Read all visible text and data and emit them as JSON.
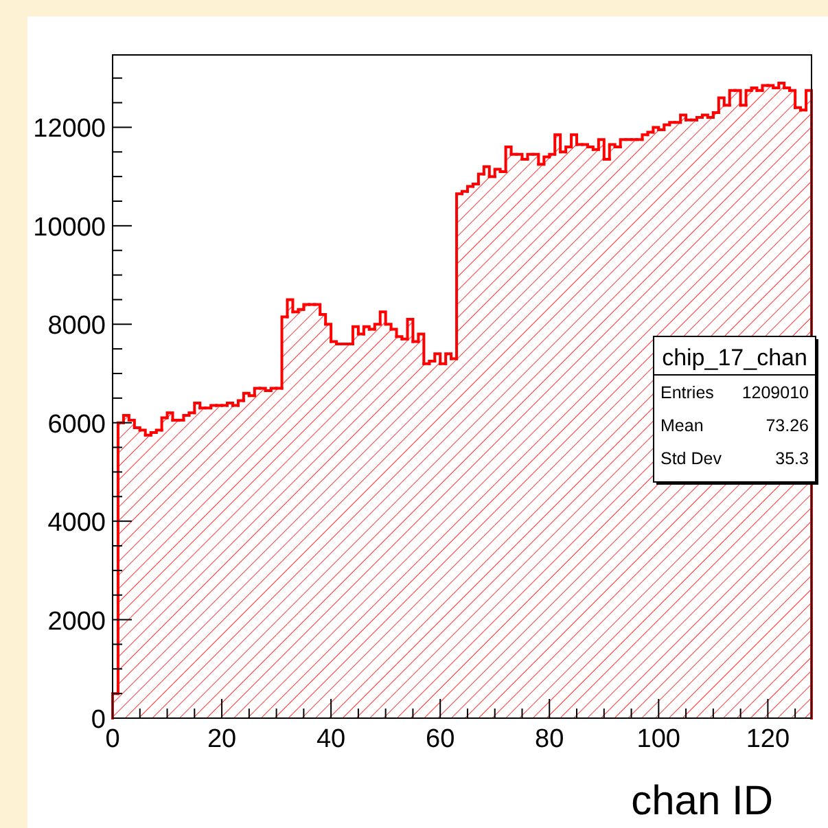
{
  "chart_data": {
    "type": "histogram",
    "xlabel": "chan ID",
    "color": "#ff0000",
    "bins": [
      0,
      1,
      2,
      3,
      4,
      5,
      6,
      7,
      8,
      9,
      10,
      11,
      12,
      13,
      14,
      15,
      16,
      17,
      18,
      19,
      20,
      21,
      22,
      23,
      24,
      25,
      26,
      27,
      28,
      29,
      30,
      31,
      32,
      33,
      34,
      35,
      36,
      37,
      38,
      39,
      40,
      41,
      42,
      43,
      44,
      45,
      46,
      47,
      48,
      49,
      50,
      51,
      52,
      53,
      54,
      55,
      56,
      57,
      58,
      59,
      60,
      61,
      62,
      63,
      64,
      65,
      66,
      67,
      68,
      69,
      70,
      71,
      72,
      73,
      74,
      75,
      76,
      77,
      78,
      79,
      80,
      81,
      82,
      83,
      84,
      85,
      86,
      87,
      88,
      89,
      90,
      91,
      92,
      93,
      94,
      95,
      96,
      97,
      98,
      99,
      100,
      101,
      102,
      103,
      104,
      105,
      106,
      107,
      108,
      109,
      110,
      111,
      112,
      113,
      114,
      115,
      116,
      117,
      118,
      119,
      120,
      121,
      122,
      123,
      124,
      125,
      126,
      127,
      128
    ],
    "values": [
      500,
      6000,
      6150,
      6050,
      5900,
      5850,
      5750,
      5800,
      5850,
      6100,
      6200,
      6050,
      6050,
      6150,
      6200,
      6400,
      6300,
      6300,
      6350,
      6350,
      6350,
      6400,
      6350,
      6450,
      6600,
      6550,
      6700,
      6700,
      6650,
      6700,
      6700,
      8150,
      8500,
      8250,
      8300,
      8400,
      8400,
      8400,
      8200,
      8000,
      7650,
      7600,
      7600,
      7600,
      7950,
      7800,
      7950,
      7900,
      8000,
      8250,
      8000,
      7900,
      7750,
      7700,
      8100,
      7650,
      7800,
      7200,
      7250,
      7400,
      7200,
      7400,
      7300,
      10650,
      10700,
      10800,
      10850,
      11050,
      11200,
      11000,
      11150,
      11100,
      11600,
      11450,
      11450,
      11350,
      11450,
      11450,
      11250,
      11400,
      11450,
      11850,
      11500,
      11600,
      11850,
      11650,
      11650,
      11600,
      11550,
      11750,
      11350,
      11650,
      11600,
      11750,
      11750,
      11750,
      11750,
      11850,
      11900,
      12000,
      11950,
      12050,
      12100,
      12100,
      12250,
      12150,
      12150,
      12200,
      12250,
      12200,
      12300,
      12600,
      12450,
      12750,
      12750,
      12450,
      12750,
      12800,
      12750,
      12850,
      12850,
      12800,
      12900,
      12800,
      12750,
      12400,
      12350,
      12750
    ],
    "xlim": [
      0,
      128
    ],
    "xticks": [
      0,
      {
        "value": 5,
        "label": null
      },
      {
        "value": 10,
        "label": null
      },
      {
        "value": 15,
        "label": null
      },
      20,
      {
        "value": 25,
        "label": null
      },
      {
        "value": 30,
        "label": null
      },
      {
        "value": 35,
        "label": null
      },
      40,
      {
        "value": 45,
        "label": null
      },
      {
        "value": 50,
        "label": null
      },
      {
        "value": 55,
        "label": null
      },
      60,
      {
        "value": 65,
        "label": null
      },
      {
        "value": 70,
        "label": null
      },
      {
        "value": 75,
        "label": null
      },
      80,
      {
        "value": 85,
        "label": null
      },
      {
        "value": 90,
        "label": null
      },
      {
        "value": 95,
        "label": null
      },
      100,
      {
        "value": 105,
        "label": null
      },
      {
        "value": 110,
        "label": null
      },
      {
        "value": 115,
        "label": null
      },
      120,
      {
        "value": 125,
        "label": null
      }
    ],
    "ylim": [
      0,
      13470
    ],
    "yticks": [
      0,
      {
        "value": 500,
        "label": null
      },
      {
        "value": 1000,
        "label": null
      },
      {
        "value": 1500,
        "label": null
      },
      2000,
      {
        "value": 2500,
        "label": null
      },
      {
        "value": 3000,
        "label": null
      },
      {
        "value": 3500,
        "label": null
      },
      4000,
      {
        "value": 4500,
        "label": null
      },
      {
        "value": 5000,
        "label": null
      },
      {
        "value": 5500,
        "label": null
      },
      6000,
      {
        "value": 6500,
        "label": null
      },
      {
        "value": 7000,
        "label": null
      },
      {
        "value": 7500,
        "label": null
      },
      8000,
      {
        "value": 8500,
        "label": null
      },
      {
        "value": 9000,
        "label": null
      },
      {
        "value": 9500,
        "label": null
      },
      10000,
      {
        "value": 10500,
        "label": null
      },
      {
        "value": 11000,
        "label": null
      },
      {
        "value": 11500,
        "label": null
      },
      12000,
      {
        "value": 12500,
        "label": null
      },
      {
        "value": 13000,
        "label": null
      }
    ],
    "grid": false,
    "annotations": [
      "chip_17_chan",
      "Entries",
      "1209010",
      "Mean",
      "73.26",
      "Std Dev",
      "35.3"
    ]
  }
}
